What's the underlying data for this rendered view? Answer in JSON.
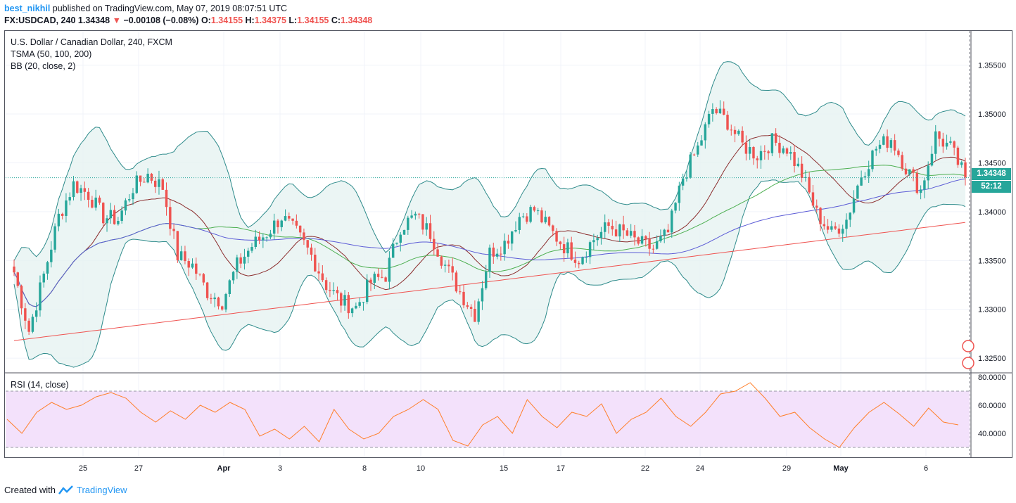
{
  "header": {
    "user": "best_nikhil",
    "published": "published on TradingView.com, May 07, 2019 08:07:51 UTC",
    "symbol_line": "FX:USDCAD, 240",
    "last": "1.34348",
    "change": "−0.00108 (−0.08%)",
    "o_label": "O:",
    "o": "1.34155",
    "h_label": "H:",
    "h": "1.34375",
    "l_label": "L:",
    "l": "1.34155",
    "c_label": "C:",
    "c": "1.34348"
  },
  "legend": {
    "title": "U.S. Dollar / Canadian Dollar, 240, FXCM",
    "tsma": "TSMA (50, 100, 200)",
    "bb": "BB (20, close, 2)",
    "rsi": "RSI (14, close)"
  },
  "price_tag": {
    "price": "1.34348",
    "countdown": "52:12"
  },
  "footer": {
    "created_with": "Created with",
    "brand": "TradingView"
  },
  "colors": {
    "up": "#26a69a",
    "down": "#ef5350",
    "bb": "#2e8b8b",
    "bb_fill": "#e6f3f1",
    "sma50": "#4caf50",
    "sma100": "#5b5bd6",
    "sma200": "#ef5350",
    "basis": "#8b2c2c",
    "rsi_line": "#ff7f2a",
    "rsi_band": "#f3e1fb"
  },
  "chart_data": [
    {
      "type": "candlestick",
      "title": "U.S. Dollar / Canadian Dollar, 240, FXCM",
      "y_ticks": [
        "1.32500",
        "1.33000",
        "1.33500",
        "1.34000",
        "1.34500",
        "1.35000",
        "1.35500"
      ],
      "ylim": [
        1.3235,
        1.3585
      ],
      "x_ticks": [
        "25",
        "27",
        "Apr",
        "3",
        "8",
        "10",
        "15",
        "17",
        "22",
        "24",
        "29",
        "May",
        "6"
      ],
      "price_anchors": [
        1.3338,
        1.3278,
        1.3335,
        1.3395,
        1.3428,
        1.3418,
        1.3395,
        1.3392,
        1.3425,
        1.3438,
        1.3425,
        1.3355,
        1.3345,
        1.3318,
        1.3308,
        1.3345,
        1.3365,
        1.3378,
        1.3395,
        1.3378,
        1.3355,
        1.3325,
        1.3308,
        1.3302,
        1.3328,
        1.3335,
        1.3385,
        1.3395,
        1.3378,
        1.3345,
        1.3318,
        1.3295,
        1.3358,
        1.3368,
        1.3395,
        1.3402,
        1.3382,
        1.3365,
        1.3352,
        1.3372,
        1.3385,
        1.3378,
        1.3368,
        1.3362,
        1.3378,
        1.3435,
        1.3465,
        1.3505,
        1.3492,
        1.3468,
        1.3458,
        1.3472,
        1.3465,
        1.3438,
        1.3398,
        1.3378,
        1.3392,
        1.3438,
        1.3465,
        1.3475,
        1.3445,
        1.3422,
        1.3478,
        1.3465,
        1.3435
      ]
    },
    {
      "type": "line",
      "title": "RSI (14, close)",
      "y_ticks": [
        "40.0000",
        "60.0000",
        "80.0000"
      ],
      "ylim": [
        23,
        82
      ],
      "bands": [
        30,
        70
      ],
      "values": [
        50,
        40,
        55,
        62,
        57,
        60,
        66,
        69,
        65,
        55,
        48,
        56,
        50,
        60,
        55,
        62,
        57,
        38,
        43,
        36,
        45,
        34,
        57,
        43,
        36,
        40,
        52,
        57,
        64,
        57,
        35,
        31,
        46,
        52,
        40,
        64,
        52,
        44,
        55,
        52,
        61,
        40,
        50,
        55,
        65,
        52,
        45,
        55,
        68,
        70,
        76,
        65,
        52,
        55,
        44,
        36,
        30,
        44,
        55,
        62,
        54,
        45,
        58,
        48,
        46
      ]
    }
  ]
}
